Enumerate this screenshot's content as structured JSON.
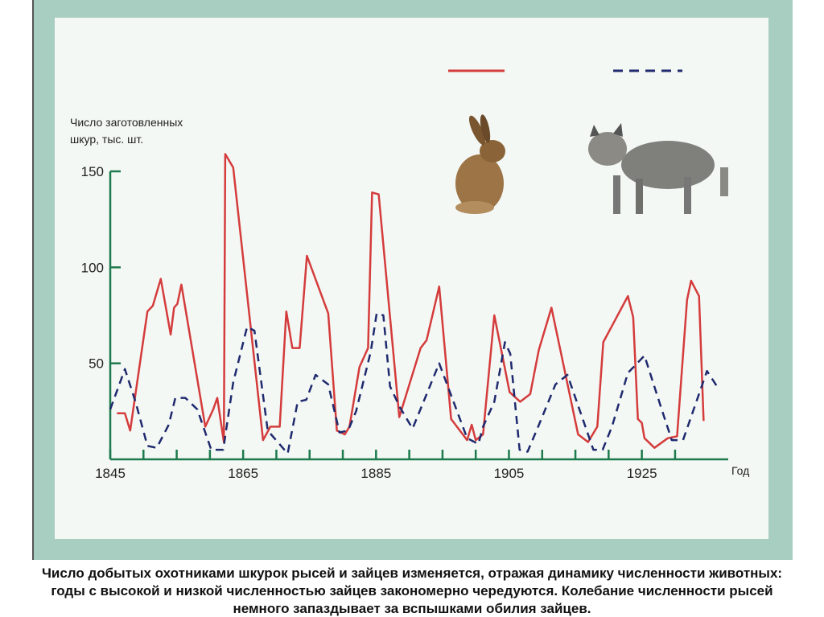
{
  "chart_data": {
    "type": "line",
    "ylabel": [
      "Число заготовленных",
      "шкур, тыс. шт."
    ],
    "xlabel": "Год",
    "xlim": [
      1845,
      1938
    ],
    "xticks": [
      1845,
      1865,
      1885,
      1905,
      1925
    ],
    "xminorticks": [
      1850,
      1855,
      1860,
      1870,
      1875,
      1880,
      1890,
      1895,
      1900,
      1910,
      1915,
      1920,
      1930
    ],
    "ylim": [
      0,
      150
    ],
    "yticks": [
      50,
      100,
      150
    ],
    "axis_color": "#1c7a4c",
    "legend": "top",
    "series": [
      {
        "color": "#d43c3c",
        "dashed": false,
        "x": [
          1846.0,
          1847.2,
          1848.0,
          1850.6,
          1851.4,
          1852.6,
          1854.1,
          1854.6,
          1855.1,
          1855.7,
          1859.3,
          1860.5,
          1861.1,
          1862.1,
          1862.3,
          1863.5,
          1868.0,
          1869.1,
          1870.5,
          1871.5,
          1872.4,
          1873.5,
          1874.6,
          1877.8,
          1879.1,
          1880.3,
          1881.0,
          1882.5,
          1883.8,
          1884.4,
          1885.4,
          1888.5,
          1891.7,
          1892.6,
          1894.5,
          1896.3,
          1898.7,
          1899.4,
          1900.0,
          1901.1,
          1902.8,
          1905.1,
          1906.7,
          1908.2,
          1909.5,
          1911.4,
          1915.4,
          1916.9,
          1918.3,
          1919.2,
          1922.9,
          1923.7,
          1924.4,
          1925.0,
          1925.4,
          1926.9,
          1928.9,
          1930.3,
          1931.8,
          1932.4,
          1933.6,
          1934.3
        ],
        "values": [
          24,
          24,
          15,
          77,
          80,
          94,
          65,
          79,
          81,
          91,
          17,
          26,
          32,
          9,
          159,
          152,
          10,
          17,
          17,
          77,
          58,
          58,
          106,
          76,
          15,
          13,
          17,
          48,
          58,
          139,
          138,
          22,
          58,
          62,
          90,
          21,
          10,
          18,
          10,
          13,
          75,
          35,
          30,
          34,
          57,
          79,
          13,
          9,
          17,
          61,
          85,
          74,
          21,
          19,
          11,
          6,
          11,
          12,
          83,
          93,
          85,
          20
        ]
      },
      {
        "color": "#1f2a6e",
        "dashed": true,
        "x": [
          1845.0,
          1847.2,
          1848.8,
          1850.6,
          1852.0,
          1853.8,
          1854.8,
          1856.3,
          1858.1,
          1860.2,
          1862.0,
          1863.5,
          1865.6,
          1866.7,
          1868.7,
          1871.7,
          1873.2,
          1874.5,
          1875.9,
          1877.8,
          1879.5,
          1880.8,
          1882.0,
          1884.2,
          1885.1,
          1886.1,
          1887.1,
          1888.6,
          1890.5,
          1894.5,
          1898.7,
          1900.4,
          1901.1,
          1902.8,
          1904.4,
          1905.2,
          1906.6,
          1907.8,
          1909.4,
          1912.0,
          1913.8,
          1917.7,
          1919.1,
          1920.5,
          1922.9,
          1925.4,
          1927.8,
          1929.5,
          1931.2,
          1932.3,
          1934.8,
          1936.5
        ],
        "values": [
          26,
          47,
          30,
          7,
          6,
          18,
          32,
          32,
          26,
          5,
          5,
          40,
          69,
          67,
          15,
          3,
          30,
          31,
          44,
          39,
          14,
          15,
          25,
          56,
          76,
          75,
          38,
          27,
          16,
          50,
          11,
          8,
          17,
          30,
          61,
          55,
          5,
          4,
          17,
          39,
          44,
          5,
          5,
          17,
          45,
          54,
          28,
          10,
          10,
          21,
          46,
          37
        ]
      }
    ]
  },
  "caption": [
    "Число добытых охотниками шкурок рысей и зайцев изменяется, отражая  динамику численности животных:",
    "годы с высокой и низкой численностью  зайцев закономерно чередуются. Колебание численности рысей",
    "немного  запаздывает за вспышками обилия зайцев."
  ]
}
